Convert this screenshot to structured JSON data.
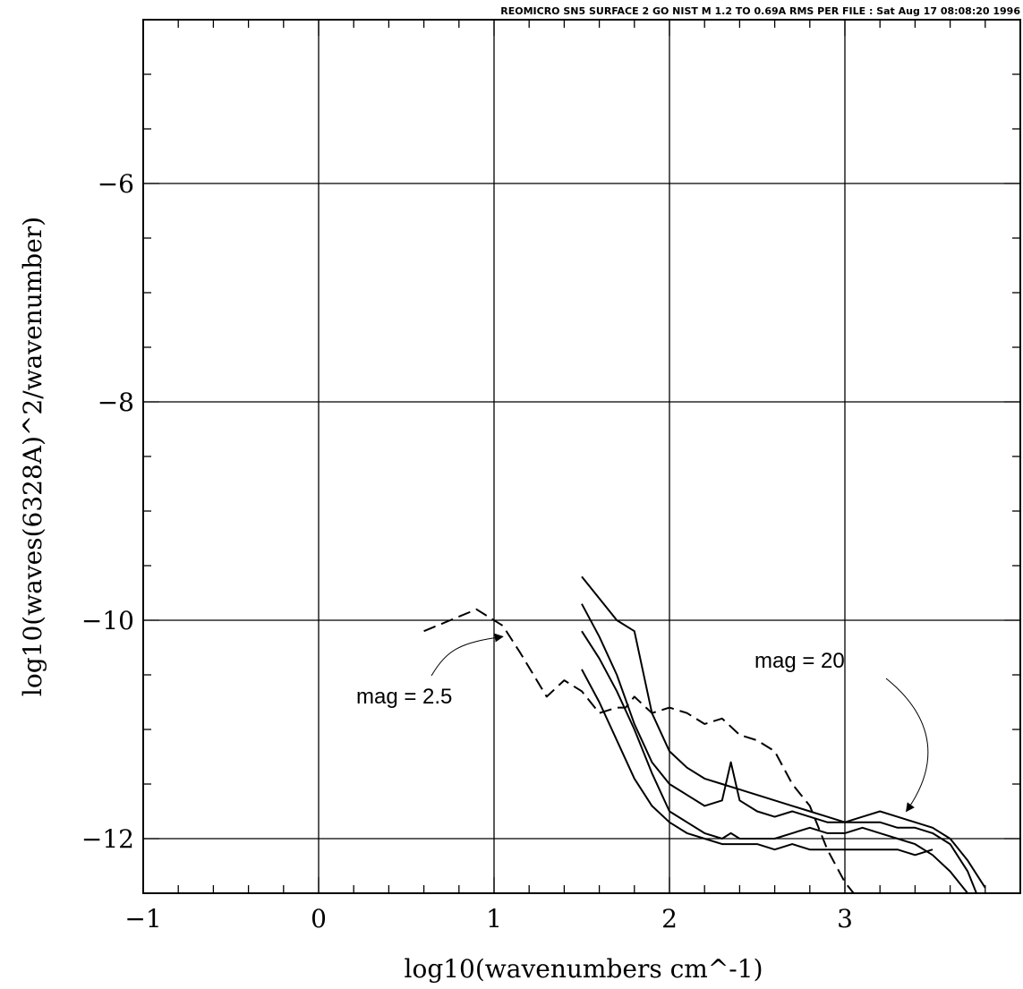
{
  "chart_data": {
    "type": "line",
    "header": "REOMICRO SN5 SURFACE 2 GO NIST M 1.2 TO 0.69A RMS PER FILE : Sat Aug 17 08:08:20 1996",
    "xlabel": "log10(wavenumbers cm^-1)",
    "ylabel": "log10(waves(6328A)^2/wavenumber)",
    "xlim": [
      -1,
      4
    ],
    "ylim": [
      -12.5,
      -4.5
    ],
    "x_ticks": [
      -1,
      0,
      1,
      2,
      3
    ],
    "x_tick_labels": [
      "−1",
      "0",
      "1",
      "2",
      "3"
    ],
    "y_ticks": [
      -12,
      -10,
      -8,
      -6
    ],
    "y_tick_labels": [
      "−12",
      "−10",
      "−8",
      "−6"
    ],
    "grid": true,
    "series": [
      {
        "style": "dashed",
        "x": [
          0.6,
          0.75,
          0.9,
          1.05,
          1.15,
          1.3,
          1.4,
          1.5,
          1.6,
          1.7,
          1.75,
          1.8,
          1.9,
          2.0,
          2.1,
          2.2,
          2.3,
          2.4,
          2.5,
          2.6,
          2.7,
          2.75,
          2.8,
          2.85,
          2.9,
          2.95,
          3.0,
          3.05
        ],
        "y": [
          -10.1,
          -10.0,
          -9.9,
          -10.05,
          -10.3,
          -10.7,
          -10.55,
          -10.65,
          -10.85,
          -10.8,
          -10.8,
          -10.7,
          -10.85,
          -10.8,
          -10.85,
          -10.95,
          -10.9,
          -11.05,
          -11.1,
          -11.2,
          -11.5,
          -11.6,
          -11.7,
          -11.9,
          -12.1,
          -12.25,
          -12.4,
          -12.5
        ]
      },
      {
        "style": "solid",
        "x": [
          1.5,
          1.6,
          1.7,
          1.8,
          1.9,
          2.0,
          2.1,
          2.2,
          2.3,
          2.4,
          2.5,
          2.6,
          2.7,
          2.8,
          2.9,
          3.0,
          3.1,
          3.2,
          3.3,
          3.4,
          3.5
        ],
        "y": [
          -10.45,
          -10.75,
          -11.1,
          -11.45,
          -11.7,
          -11.85,
          -11.95,
          -12.0,
          -12.05,
          -12.05,
          -12.05,
          -12.1,
          -12.05,
          -12.1,
          -12.1,
          -12.1,
          -12.1,
          -12.1,
          -12.1,
          -12.15,
          -12.1
        ]
      },
      {
        "style": "solid",
        "x": [
          1.5,
          1.6,
          1.7,
          1.8,
          1.9,
          2.0,
          2.1,
          2.2,
          2.3,
          2.35,
          2.4,
          2.5,
          2.6,
          2.7,
          2.8,
          2.9,
          3.0,
          3.1,
          3.2,
          3.3,
          3.4,
          3.5,
          3.6,
          3.7
        ],
        "y": [
          -10.1,
          -10.35,
          -10.65,
          -11.0,
          -11.4,
          -11.75,
          -11.85,
          -11.95,
          -12.0,
          -11.95,
          -12.0,
          -12.0,
          -12.0,
          -11.95,
          -11.9,
          -11.95,
          -11.95,
          -11.9,
          -11.95,
          -12.0,
          -12.05,
          -12.15,
          -12.3,
          -12.5
        ]
      },
      {
        "style": "solid",
        "x": [
          1.5,
          1.6,
          1.7,
          1.8,
          1.9,
          2.0,
          2.1,
          2.2,
          2.3,
          2.35,
          2.4,
          2.5,
          2.6,
          2.7,
          2.8,
          2.9,
          3.0,
          3.1,
          3.2,
          3.3,
          3.4,
          3.5,
          3.6,
          3.7,
          3.8
        ],
        "y": [
          -9.85,
          -10.15,
          -10.5,
          -10.95,
          -11.3,
          -11.5,
          -11.6,
          -11.7,
          -11.65,
          -11.3,
          -11.65,
          -11.75,
          -11.8,
          -11.75,
          -11.8,
          -11.85,
          -11.85,
          -11.8,
          -11.75,
          -11.8,
          -11.85,
          -11.9,
          -12.0,
          -12.2,
          -12.45
        ]
      },
      {
        "style": "solid",
        "x": [
          1.5,
          1.6,
          1.7,
          1.8,
          1.9,
          2.0,
          2.1,
          2.2,
          2.3,
          2.4,
          2.5,
          2.6,
          2.7,
          2.8,
          2.9,
          3.0,
          3.1,
          3.2,
          3.3,
          3.4,
          3.5,
          3.6,
          3.7,
          3.75
        ],
        "y": [
          -9.6,
          -9.8,
          -10.0,
          -10.1,
          -10.85,
          -11.2,
          -11.35,
          -11.45,
          -11.5,
          -11.55,
          -11.6,
          -11.65,
          -11.7,
          -11.75,
          -11.8,
          -11.85,
          -11.85,
          -11.85,
          -11.9,
          -11.9,
          -11.95,
          -12.05,
          -12.3,
          -12.5
        ]
      }
    ],
    "annotations": [
      {
        "text": "mag = 2.5",
        "target": {
          "x": 1.05,
          "y": -10.15
        }
      },
      {
        "text": "mag = 20",
        "target": {
          "x": 3.35,
          "y": -11.75
        }
      }
    ]
  }
}
